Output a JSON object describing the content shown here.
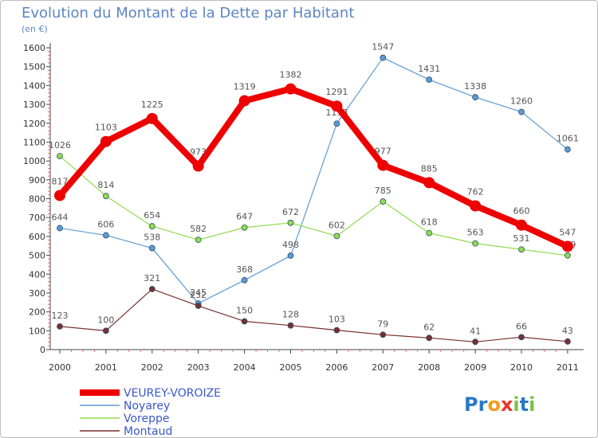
{
  "chart_data": {
    "type": "line",
    "title": "Evolution du Montant de la Dette par Habitant",
    "subtitle": "(en €)",
    "xlabel": "",
    "ylabel": "",
    "categories": [
      "2000",
      "2001",
      "2002",
      "2003",
      "2004",
      "2005",
      "2006",
      "2007",
      "2008",
      "2009",
      "2010",
      "2011"
    ],
    "ylim": [
      0,
      1600
    ],
    "yticks": [
      0,
      100,
      200,
      300,
      400,
      500,
      600,
      700,
      800,
      900,
      1000,
      1100,
      1200,
      1300,
      1400,
      1500,
      1600
    ],
    "grid": false,
    "legend_position": "bottom-left",
    "series": [
      {
        "name": "VEUREY-VOROIZE",
        "color": "#ee0000",
        "values": [
          817,
          1103,
          1225,
          973,
          1319,
          1382,
          1291,
          977,
          885,
          762,
          660,
          547
        ]
      },
      {
        "name": "Noyarey",
        "color": "#5b9bd5",
        "values": [
          644,
          606,
          538,
          245,
          368,
          498,
          1198,
          1547,
          1431,
          1338,
          1260,
          1061
        ]
      },
      {
        "name": "Voreppe",
        "color": "#8fdd4c",
        "values": [
          1026,
          814,
          654,
          582,
          647,
          672,
          602,
          785,
          618,
          563,
          531,
          499
        ]
      },
      {
        "name": "Montaud",
        "color": "#7a2f2f",
        "values": [
          123,
          100,
          321,
          232,
          150,
          128,
          103,
          79,
          62,
          41,
          66,
          43
        ]
      }
    ]
  },
  "brand": {
    "text": "Proxiti",
    "letters": [
      "P",
      "r",
      "o",
      "x",
      "i",
      "t",
      "i"
    ],
    "colors": [
      "#2b78c5",
      "#2b78c5",
      "#f39c1f",
      "#e9342a",
      "#7cc142",
      "#2b78c5",
      "#7cc142"
    ]
  }
}
